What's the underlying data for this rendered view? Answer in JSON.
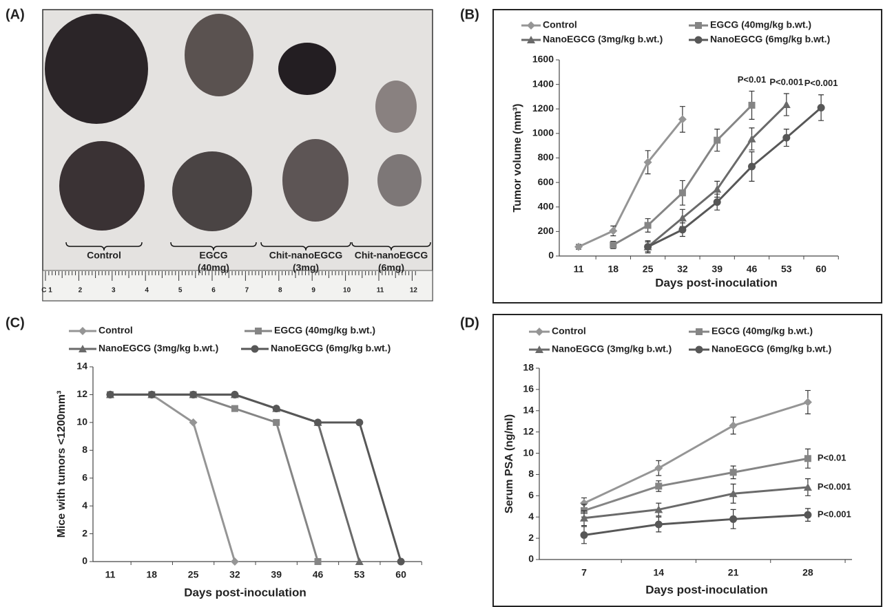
{
  "photo": {
    "panel": "(A)",
    "groups": [
      [
        "Control"
      ],
      [
        "EGCG",
        "(40mg)"
      ],
      [
        "Chit-nanoEGCG",
        "(3mg)"
      ],
      [
        "Chit-nanoEGCG",
        "(6mg)"
      ]
    ],
    "ruler_labels": [
      "C 1",
      "2",
      "3",
      "4",
      "5",
      "6",
      "7",
      "8",
      "9",
      "10",
      "11",
      "12"
    ]
  },
  "chart_data": [
    {
      "type": "line",
      "panel": "(B)",
      "xlabel": "Days post-inoculation",
      "ylabel": "Tumor volume (mm³)",
      "categories": [
        "11",
        "18",
        "25",
        "32",
        "39",
        "46",
        "53",
        "60"
      ],
      "ylim": [
        0,
        1600
      ],
      "yticks": [
        0,
        200,
        400,
        600,
        800,
        1000,
        1200,
        1400,
        1600
      ],
      "grid": false,
      "series": [
        {
          "name": "Control",
          "color": "#959595",
          "marker": "diamond",
          "values": [
            75,
            205,
            765,
            1115,
            null,
            null,
            null,
            null
          ],
          "errors": [
            20,
            40,
            95,
            105,
            null,
            null,
            null,
            null
          ]
        },
        {
          "name": "EGCG (40mg/kg b.wt.)",
          "color": "#858585",
          "marker": "square",
          "values": [
            null,
            90,
            250,
            515,
            945,
            1230,
            null,
            null
          ],
          "errors": [
            null,
            30,
            55,
            100,
            90,
            115,
            null,
            null
          ]
        },
        {
          "name": "NanoEGCG (3mg/kg b.wt.)",
          "color": "#6a6a6a",
          "marker": "triangle",
          "values": [
            null,
            null,
            75,
            310,
            545,
            955,
            1235,
            null
          ],
          "errors": [
            null,
            null,
            50,
            70,
            65,
            90,
            90,
            null
          ]
        },
        {
          "name": "NanoEGCG (6mg/kg b.wt.)",
          "color": "#575757",
          "marker": "circle",
          "values": [
            null,
            null,
            75,
            215,
            440,
            730,
            965,
            1210
          ],
          "errors": [
            null,
            null,
            40,
            55,
            65,
            120,
            70,
            105
          ]
        }
      ],
      "annotations": [
        "P<0.01",
        "P<0.001",
        "P<0.001"
      ]
    },
    {
      "type": "line",
      "panel": "(C)",
      "xlabel": "Days post-inoculation",
      "ylabel": "Mice with tumors <1200mm³",
      "categories": [
        "11",
        "18",
        "25",
        "32",
        "39",
        "46",
        "53",
        "60"
      ],
      "ylim": [
        0,
        14
      ],
      "yticks": [
        0,
        2,
        4,
        6,
        8,
        10,
        12,
        14
      ],
      "grid": false,
      "series": [
        {
          "name": "Control",
          "color": "#959595",
          "marker": "diamond",
          "values": [
            12,
            12,
            10,
            0,
            null,
            null,
            null,
            null
          ]
        },
        {
          "name": "EGCG (40mg/kg b.wt.)",
          "color": "#858585",
          "marker": "square",
          "values": [
            12,
            12,
            12,
            11,
            10,
            0,
            null,
            null
          ]
        },
        {
          "name": "NanoEGCG (3mg/kg b.wt.)",
          "color": "#6a6a6a",
          "marker": "triangle",
          "values": [
            12,
            12,
            12,
            12,
            11,
            10,
            0,
            null
          ]
        },
        {
          "name": "NanoEGCG (6mg/kg b.wt.)",
          "color": "#575757",
          "marker": "circle",
          "values": [
            12,
            12,
            12,
            12,
            11,
            10,
            10,
            0
          ]
        }
      ]
    },
    {
      "type": "line",
      "panel": "(D)",
      "xlabel": "Days post-inoculation",
      "ylabel": "Serum PSA (ng/ml)",
      "categories": [
        "7",
        "14",
        "21",
        "28"
      ],
      "ylim": [
        0,
        18
      ],
      "yticks": [
        0,
        2,
        4,
        6,
        8,
        10,
        12,
        14,
        16,
        18
      ],
      "grid": false,
      "series": [
        {
          "name": "Control",
          "color": "#959595",
          "marker": "diamond",
          "values": [
            5.3,
            8.6,
            12.6,
            14.8
          ],
          "errors": [
            0.5,
            0.7,
            0.8,
            1.1
          ]
        },
        {
          "name": "EGCG (40mg/kg b.wt.)",
          "color": "#858585",
          "marker": "square",
          "values": [
            4.6,
            6.9,
            8.2,
            9.5
          ],
          "errors": [
            0.6,
            0.5,
            0.6,
            0.9
          ]
        },
        {
          "name": "NanoEGCG (3mg/kg b.wt.)",
          "color": "#6a6a6a",
          "marker": "triangle",
          "values": [
            3.9,
            4.7,
            6.2,
            6.8
          ],
          "errors": [
            0.7,
            0.6,
            0.9,
            0.8
          ]
        },
        {
          "name": "NanoEGCG (6mg/kg b.wt.)",
          "color": "#575757",
          "marker": "circle",
          "values": [
            2.3,
            3.3,
            3.8,
            4.2
          ],
          "errors": [
            0.8,
            0.7,
            0.9,
            0.6
          ]
        }
      ],
      "annotations": [
        "P<0.01",
        "P<0.001",
        "P<0.001"
      ]
    }
  ]
}
